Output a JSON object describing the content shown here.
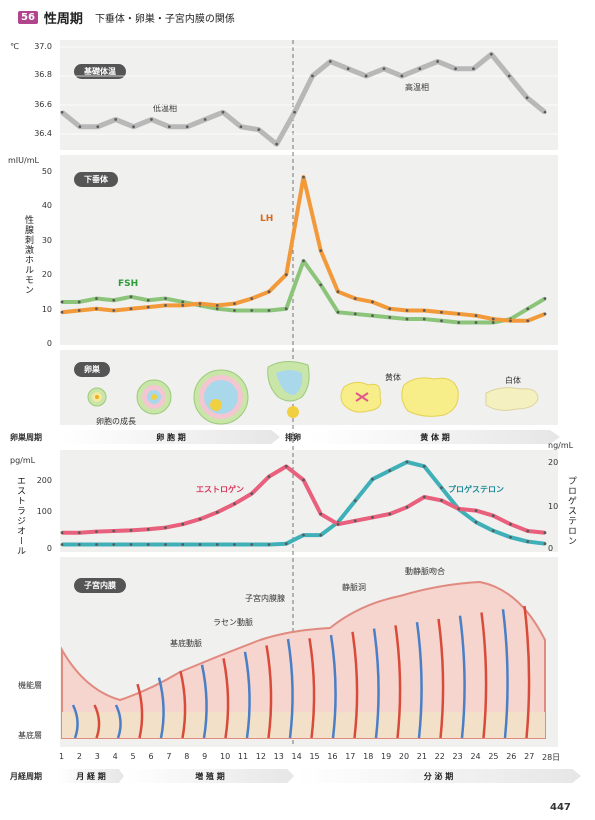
{
  "header": {
    "badge": "56",
    "title": "性周期",
    "subtitle": "下垂体・卵巣・子宮内膜の関係"
  },
  "bbt": {
    "pill": "基礎体温",
    "unit": "℃",
    "low_label": "低温相",
    "high_label": "高温相",
    "ticks": [
      "37.0",
      "36.8",
      "36.6",
      "36.4"
    ],
    "values": [
      36.55,
      36.45,
      36.45,
      36.5,
      36.45,
      36.5,
      36.45,
      36.45,
      36.5,
      36.55,
      36.45,
      36.43,
      36.33,
      36.55,
      36.8,
      36.9,
      36.85,
      36.8,
      36.85,
      36.8,
      36.85,
      36.9,
      36.85,
      36.85,
      36.95,
      36.8,
      36.65,
      36.55
    ]
  },
  "pit": {
    "pill": "下垂体",
    "unit": "mIU/mL",
    "ylabel": "性腺刺激ホルモン",
    "ticks": [
      "50",
      "40",
      "30",
      "20",
      "10",
      "0"
    ],
    "lh_label": "LH",
    "fsh_label": "FSH",
    "lh": [
      9,
      9.5,
      10,
      9.5,
      10,
      10.5,
      11,
      11,
      11.5,
      11,
      11.5,
      13,
      15,
      20,
      48.5,
      27,
      15,
      13,
      12,
      10,
      9.5,
      9.5,
      9,
      8.5,
      8,
      7,
      6.5,
      6.5,
      8.5
    ],
    "fsh": [
      12,
      12,
      13,
      12.5,
      13.5,
      12.5,
      13,
      12,
      11,
      10,
      9.5,
      9.5,
      9.5,
      10,
      24,
      17,
      9,
      8.5,
      8,
      7.5,
      7,
      7,
      6.5,
      6,
      6,
      6,
      7,
      10,
      13
    ]
  },
  "ovary": {
    "pill": "卵巣",
    "growth_label": "卵胞の成長",
    "corpus_luteum": "黄体",
    "corpus_albicans": "白体"
  },
  "ovary_phase": {
    "label": "卵巣周期",
    "follicular": "卵 胞 期",
    "ovulation": "排卵",
    "luteal": "黄 体 期"
  },
  "hormones": {
    "left_unit": "pg/mL",
    "right_unit": "ng/mL",
    "left_ylabel": "エストラジオール",
    "right_ylabel": "プロゲステロン",
    "left_ticks": [
      "200",
      "100",
      "0"
    ],
    "right_ticks": [
      "20",
      "10",
      "0"
    ],
    "estrogen_label": "エストロゲン",
    "progesterone_label": "プロゲステロン",
    "estrogen": [
      45,
      45,
      48,
      50,
      52,
      55,
      60,
      70,
      85,
      105,
      130,
      160,
      210,
      240,
      200,
      100,
      70,
      80,
      90,
      100,
      120,
      150,
      140,
      115,
      110,
      95,
      70,
      50,
      45
    ],
    "progesterone": [
      0.8,
      0.8,
      0.8,
      0.8,
      0.8,
      0.8,
      0.8,
      0.8,
      0.8,
      0.8,
      0.8,
      0.8,
      0.8,
      1,
      3,
      3,
      6,
      11,
      16,
      18,
      20,
      19,
      14,
      9,
      6,
      4,
      2.5,
      1.5,
      1
    ]
  },
  "endometrium": {
    "pill": "子宮内膜",
    "functional_layer": "機能層",
    "basal_layer": "基底層",
    "annotations": {
      "basal_artery": "基底動脈",
      "spiral_artery": "ラセン動脈",
      "gland": "子宮内膜腺",
      "venous_lake": "静脈洞",
      "anastomosis": "動静脈吻合"
    }
  },
  "days": [
    "1",
    "2",
    "3",
    "4",
    "5",
    "6",
    "7",
    "8",
    "9",
    "10",
    "11",
    "12",
    "13",
    "14",
    "15",
    "16",
    "17",
    "18",
    "19",
    "20",
    "21",
    "22",
    "23",
    "24",
    "25",
    "26",
    "27",
    "28日"
  ],
  "menstrual_phase": {
    "label": "月経周期",
    "menses": "月 経 期",
    "proliferative": "増 殖 期",
    "secretory": "分 泌 期"
  },
  "page_number": "447",
  "colors": {
    "lh": "#f29a3a",
    "fsh": "#8cc47a",
    "estrogen": "#e8607c",
    "progesterone": "#3fb0b8",
    "bbt": "#b8b8b8",
    "dot": "#5a5a5a"
  }
}
